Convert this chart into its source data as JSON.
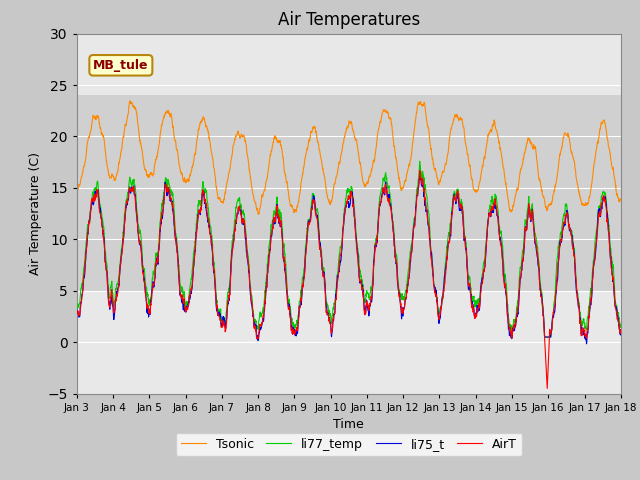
{
  "title": "Air Temperatures",
  "xlabel": "Time",
  "ylabel": "Air Temperature (C)",
  "ylim": [
    -5,
    30
  ],
  "xlim": [
    0,
    360
  ],
  "x_tick_labels": [
    "Jan 3",
    "Jan 4",
    "Jan 5",
    "Jan 6",
    "Jan 7",
    "Jan 8",
    "Jan 9",
    "Jan 10",
    "Jan 11",
    "Jan 12",
    "Jan 13",
    "Jan 14",
    "Jan 15",
    "Jan 16",
    "Jan 17",
    "Jan 18"
  ],
  "x_tick_positions": [
    0,
    24,
    48,
    72,
    96,
    120,
    144,
    168,
    192,
    216,
    240,
    264,
    288,
    312,
    336,
    360
  ],
  "y_ticks": [
    -5,
    0,
    5,
    10,
    15,
    20,
    25,
    30
  ],
  "shaded_band_low": 5,
  "shaded_band_high": 24,
  "series_colors": {
    "AirT": "#ff0000",
    "li75_t": "#0000dd",
    "li77_temp": "#00cc00",
    "Tsonic": "#ff8800"
  },
  "annotation_text": "MB_tule",
  "fig_bg": "#c8c8c8",
  "plot_bg": "#e8e8e8",
  "shaded_bg": "#d0d0d0",
  "grid_color": "#ffffff",
  "legend_fontsize": 9,
  "axis_fontsize": 9,
  "title_fontsize": 12
}
